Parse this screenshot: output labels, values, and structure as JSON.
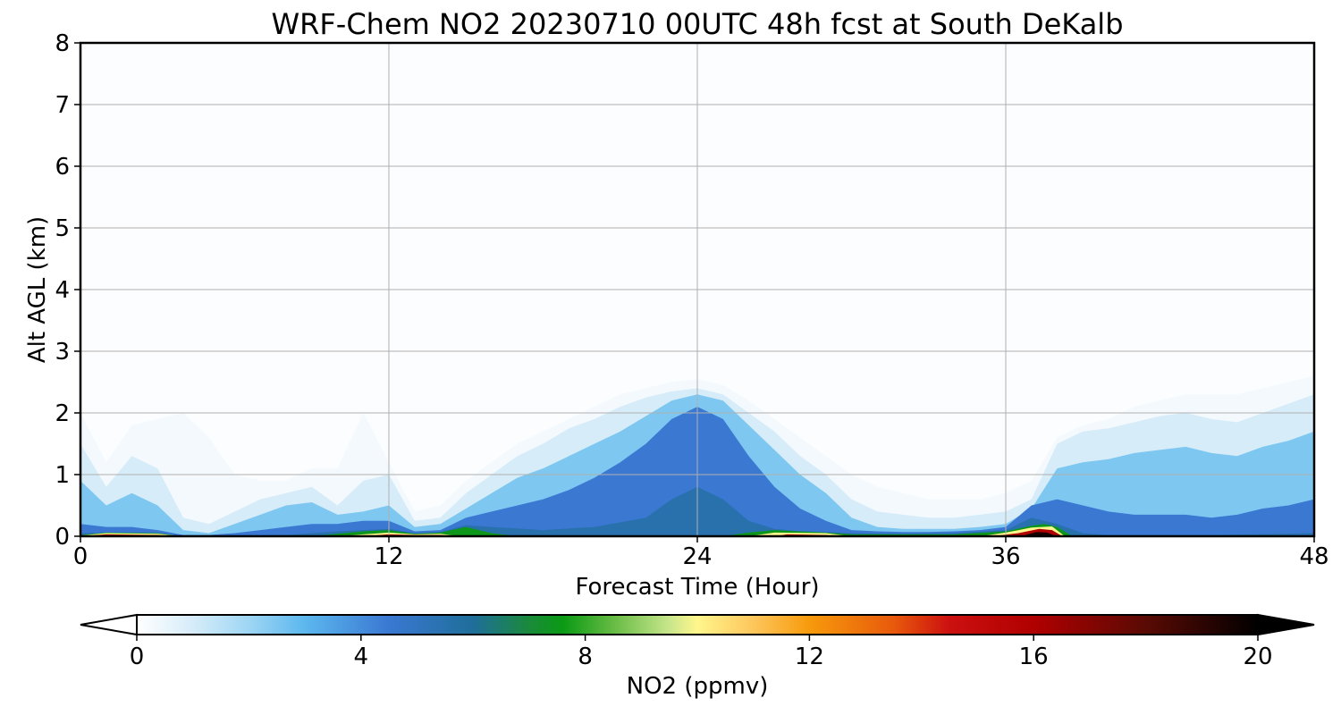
{
  "chart_data": {
    "type": "heatmap",
    "title": "WRF-Chem NO2  20230710 00UTC 48h fcst at South DeKalb",
    "xlabel": "Forecast Time (Hour)",
    "ylabel": "Alt AGL (km)",
    "xlim": [
      0,
      48
    ],
    "ylim": [
      0,
      8
    ],
    "xticks": [
      "0",
      "12",
      "24",
      "36",
      "48"
    ],
    "yticks": [
      "0",
      "1",
      "2",
      "3",
      "4",
      "5",
      "6",
      "7",
      "8"
    ],
    "grid": true,
    "colorbar": {
      "label": "NO2  (ppmv)",
      "range": [
        0,
        20
      ],
      "ticks": [
        "0",
        "4",
        "8",
        "12",
        "16",
        "20"
      ],
      "extend": "both",
      "stops": [
        {
          "v": 0,
          "c": "#ffffff"
        },
        {
          "v": 1,
          "c": "#d6ecf9"
        },
        {
          "v": 2,
          "c": "#9ed6f4"
        },
        {
          "v": 3,
          "c": "#5cb7ee"
        },
        {
          "v": 4.5,
          "c": "#3a78d2"
        },
        {
          "v": 6,
          "c": "#1f6e9a"
        },
        {
          "v": 7,
          "c": "#1a8a3a"
        },
        {
          "v": 7.6,
          "c": "#0a9a14"
        },
        {
          "v": 8.5,
          "c": "#66bb44"
        },
        {
          "v": 9.5,
          "c": "#c8e68c"
        },
        {
          "v": 10,
          "c": "#fff68c"
        },
        {
          "v": 11,
          "c": "#fdc65c"
        },
        {
          "v": 12,
          "c": "#f79a0c"
        },
        {
          "v": 13.5,
          "c": "#e85a0c"
        },
        {
          "v": 14.5,
          "c": "#cc1010"
        },
        {
          "v": 16,
          "c": "#b00000"
        },
        {
          "v": 18,
          "c": "#5a0a04"
        },
        {
          "v": 20,
          "c": "#000000"
        }
      ]
    },
    "background_value": 0.1,
    "bands": [
      {
        "name": "faint",
        "value": 0.3,
        "top": [
          [
            0,
            2.0
          ],
          [
            1,
            1.2
          ],
          [
            2,
            1.8
          ],
          [
            3,
            1.9
          ],
          [
            4,
            2.0
          ],
          [
            5,
            1.6
          ],
          [
            6,
            1.0
          ],
          [
            7,
            0.9
          ],
          [
            8,
            0.9
          ],
          [
            9,
            1.1
          ],
          [
            10,
            1.1
          ],
          [
            11,
            2.0
          ],
          [
            12,
            1.2
          ],
          [
            13,
            0.4
          ],
          [
            14,
            0.5
          ],
          [
            15,
            0.9
          ],
          [
            16,
            1.2
          ],
          [
            17,
            1.5
          ],
          [
            18,
            1.7
          ],
          [
            19,
            1.9
          ],
          [
            20,
            2.1
          ],
          [
            21,
            2.3
          ],
          [
            22,
            2.4
          ],
          [
            23,
            2.5
          ],
          [
            24,
            2.55
          ],
          [
            25,
            2.45
          ],
          [
            26,
            2.2
          ],
          [
            27,
            1.9
          ],
          [
            28,
            1.6
          ],
          [
            29,
            1.3
          ],
          [
            30,
            1.0
          ],
          [
            31,
            0.8
          ],
          [
            32,
            0.7
          ],
          [
            33,
            0.6
          ],
          [
            34,
            0.6
          ],
          [
            35,
            0.6
          ],
          [
            36,
            0.7
          ],
          [
            37,
            0.9
          ],
          [
            38,
            1.6
          ],
          [
            39,
            1.8
          ],
          [
            40,
            1.9
          ],
          [
            41,
            2.1
          ],
          [
            42,
            2.2
          ],
          [
            43,
            2.3
          ],
          [
            44,
            2.3
          ],
          [
            45,
            2.3
          ],
          [
            46,
            2.4
          ],
          [
            47,
            2.5
          ],
          [
            48,
            2.6
          ]
        ]
      },
      {
        "name": "light",
        "value": 1.0,
        "top": [
          [
            0,
            1.5
          ],
          [
            1,
            0.8
          ],
          [
            2,
            1.3
          ],
          [
            3,
            1.1
          ],
          [
            4,
            0.3
          ],
          [
            5,
            0.2
          ],
          [
            6,
            0.4
          ],
          [
            7,
            0.6
          ],
          [
            8,
            0.7
          ],
          [
            9,
            0.8
          ],
          [
            10,
            0.5
          ],
          [
            11,
            0.9
          ],
          [
            12,
            1.0
          ],
          [
            13,
            0.25
          ],
          [
            14,
            0.3
          ],
          [
            15,
            0.7
          ],
          [
            16,
            1.0
          ],
          [
            17,
            1.3
          ],
          [
            18,
            1.5
          ],
          [
            19,
            1.75
          ],
          [
            20,
            1.9
          ],
          [
            21,
            2.1
          ],
          [
            22,
            2.25
          ],
          [
            23,
            2.35
          ],
          [
            24,
            2.4
          ],
          [
            25,
            2.3
          ],
          [
            26,
            2.0
          ],
          [
            27,
            1.7
          ],
          [
            28,
            1.3
          ],
          [
            29,
            1.0
          ],
          [
            30,
            0.6
          ],
          [
            31,
            0.4
          ],
          [
            32,
            0.35
          ],
          [
            33,
            0.3
          ],
          [
            34,
            0.3
          ],
          [
            35,
            0.35
          ],
          [
            36,
            0.4
          ],
          [
            37,
            0.6
          ],
          [
            38,
            1.5
          ],
          [
            39,
            1.7
          ],
          [
            40,
            1.75
          ],
          [
            41,
            1.85
          ],
          [
            42,
            1.95
          ],
          [
            43,
            2.0
          ],
          [
            44,
            1.9
          ],
          [
            45,
            1.85
          ],
          [
            46,
            2.0
          ],
          [
            47,
            2.15
          ],
          [
            48,
            2.3
          ]
        ]
      },
      {
        "name": "medium",
        "value": 2.5,
        "top": [
          [
            0,
            0.9
          ],
          [
            1,
            0.5
          ],
          [
            2,
            0.7
          ],
          [
            3,
            0.5
          ],
          [
            4,
            0.1
          ],
          [
            5,
            0.05
          ],
          [
            6,
            0.2
          ],
          [
            7,
            0.35
          ],
          [
            8,
            0.5
          ],
          [
            9,
            0.55
          ],
          [
            10,
            0.35
          ],
          [
            11,
            0.4
          ],
          [
            12,
            0.5
          ],
          [
            13,
            0.15
          ],
          [
            14,
            0.2
          ],
          [
            15,
            0.45
          ],
          [
            16,
            0.7
          ],
          [
            17,
            0.95
          ],
          [
            18,
            1.1
          ],
          [
            19,
            1.3
          ],
          [
            20,
            1.5
          ],
          [
            21,
            1.7
          ],
          [
            22,
            1.95
          ],
          [
            23,
            2.2
          ],
          [
            24,
            2.3
          ],
          [
            25,
            2.2
          ],
          [
            26,
            1.8
          ],
          [
            27,
            1.4
          ],
          [
            28,
            1.0
          ],
          [
            29,
            0.7
          ],
          [
            30,
            0.3
          ],
          [
            31,
            0.15
          ],
          [
            32,
            0.12
          ],
          [
            33,
            0.12
          ],
          [
            34,
            0.12
          ],
          [
            35,
            0.15
          ],
          [
            36,
            0.2
          ],
          [
            37,
            0.45
          ],
          [
            38,
            1.1
          ],
          [
            39,
            1.2
          ],
          [
            40,
            1.25
          ],
          [
            41,
            1.35
          ],
          [
            42,
            1.4
          ],
          [
            43,
            1.45
          ],
          [
            44,
            1.35
          ],
          [
            45,
            1.3
          ],
          [
            46,
            1.45
          ],
          [
            47,
            1.55
          ],
          [
            48,
            1.7
          ]
        ]
      },
      {
        "name": "strong",
        "value": 4.5,
        "top": [
          [
            0,
            0.2
          ],
          [
            1,
            0.15
          ],
          [
            2,
            0.15
          ],
          [
            3,
            0.1
          ],
          [
            4,
            0.02
          ],
          [
            5,
            0.02
          ],
          [
            6,
            0.05
          ],
          [
            7,
            0.1
          ],
          [
            8,
            0.15
          ],
          [
            9,
            0.2
          ],
          [
            10,
            0.2
          ],
          [
            11,
            0.25
          ],
          [
            12,
            0.25
          ],
          [
            13,
            0.08
          ],
          [
            14,
            0.1
          ],
          [
            15,
            0.3
          ],
          [
            16,
            0.4
          ],
          [
            17,
            0.5
          ],
          [
            18,
            0.6
          ],
          [
            19,
            0.75
          ],
          [
            20,
            0.95
          ],
          [
            21,
            1.2
          ],
          [
            22,
            1.5
          ],
          [
            23,
            1.9
          ],
          [
            24,
            2.1
          ],
          [
            25,
            1.9
          ],
          [
            26,
            1.3
          ],
          [
            27,
            0.8
          ],
          [
            28,
            0.45
          ],
          [
            29,
            0.25
          ],
          [
            30,
            0.1
          ],
          [
            31,
            0.08
          ],
          [
            32,
            0.07
          ],
          [
            33,
            0.07
          ],
          [
            34,
            0.08
          ],
          [
            35,
            0.1
          ],
          [
            36,
            0.15
          ],
          [
            37,
            0.5
          ],
          [
            38,
            0.6
          ],
          [
            39,
            0.5
          ],
          [
            40,
            0.4
          ],
          [
            41,
            0.35
          ],
          [
            42,
            0.35
          ],
          [
            43,
            0.35
          ],
          [
            44,
            0.3
          ],
          [
            45,
            0.35
          ],
          [
            46,
            0.45
          ],
          [
            47,
            0.5
          ],
          [
            48,
            0.6
          ]
        ]
      },
      {
        "name": "deep",
        "value": 5.5,
        "top": [
          [
            0,
            0.05
          ],
          [
            2,
            0.04
          ],
          [
            4,
            0.0
          ],
          [
            8,
            0.02
          ],
          [
            10,
            0.08
          ],
          [
            12,
            0.12
          ],
          [
            13,
            0.05
          ],
          [
            14,
            0.07
          ],
          [
            15,
            0.18
          ],
          [
            16,
            0.15
          ],
          [
            18,
            0.1
          ],
          [
            20,
            0.15
          ],
          [
            22,
            0.3
          ],
          [
            23,
            0.6
          ],
          [
            24,
            0.8
          ],
          [
            25,
            0.6
          ],
          [
            26,
            0.25
          ],
          [
            27,
            0.12
          ],
          [
            28,
            0.08
          ],
          [
            30,
            0.05
          ],
          [
            32,
            0.04
          ],
          [
            34,
            0.05
          ],
          [
            36,
            0.1
          ],
          [
            37,
            0.3
          ],
          [
            38,
            0.2
          ],
          [
            39,
            0.05
          ],
          [
            40,
            0.02
          ],
          [
            44,
            0.02
          ],
          [
            48,
            0.05
          ]
        ]
      },
      {
        "name": "green",
        "value": 7.5,
        "top": [
          [
            0,
            0.02
          ],
          [
            1,
            0.06
          ],
          [
            3,
            0.05
          ],
          [
            4,
            0.0
          ],
          [
            9,
            0.0
          ],
          [
            10,
            0.04
          ],
          [
            11,
            0.08
          ],
          [
            12,
            0.1
          ],
          [
            13,
            0.04
          ],
          [
            14,
            0.06
          ],
          [
            15,
            0.15
          ],
          [
            16,
            0.05
          ],
          [
            17,
            0.0
          ],
          [
            25,
            0.0
          ],
          [
            26,
            0.06
          ],
          [
            27,
            0.1
          ],
          [
            29,
            0.06
          ],
          [
            30,
            0.03
          ],
          [
            34,
            0.03
          ],
          [
            36,
            0.08
          ],
          [
            37,
            0.17
          ],
          [
            37.5,
            0.2
          ],
          [
            38,
            0.15
          ],
          [
            38.6,
            0.0
          ],
          [
            48,
            0.0
          ]
        ]
      },
      {
        "name": "yellow",
        "value": 10,
        "top": [
          [
            0,
            0.01
          ],
          [
            1,
            0.05
          ],
          [
            3,
            0.04
          ],
          [
            4,
            0.0
          ],
          [
            10,
            0.0
          ],
          [
            11,
            0.03
          ],
          [
            12,
            0.06
          ],
          [
            13,
            0.03
          ],
          [
            14,
            0.04
          ],
          [
            14.8,
            0.0
          ],
          [
            26,
            0.0
          ],
          [
            27,
            0.06
          ],
          [
            29,
            0.05
          ],
          [
            30,
            0.0
          ],
          [
            35,
            0.0
          ],
          [
            36,
            0.06
          ],
          [
            37,
            0.14
          ],
          [
            37.8,
            0.16
          ],
          [
            38.3,
            0.0
          ],
          [
            48,
            0.0
          ]
        ]
      },
      {
        "name": "red",
        "value": 16,
        "top": [
          [
            0,
            0.0
          ],
          [
            1,
            0.03
          ],
          [
            3,
            0.02
          ],
          [
            3.5,
            0.0
          ],
          [
            11,
            0.0
          ],
          [
            12,
            0.03
          ],
          [
            13,
            0.02
          ],
          [
            14,
            0.02
          ],
          [
            14.5,
            0.0
          ],
          [
            27,
            0.0
          ],
          [
            27.5,
            0.03
          ],
          [
            29,
            0.02
          ],
          [
            29.5,
            0.0
          ],
          [
            35.5,
            0.0
          ],
          [
            36.5,
            0.05
          ],
          [
            37.3,
            0.12
          ],
          [
            37.8,
            0.1
          ],
          [
            38.2,
            0.0
          ],
          [
            48,
            0.0
          ]
        ]
      },
      {
        "name": "black",
        "value": 19.5,
        "top": [
          [
            36.6,
            0.0
          ],
          [
            37.2,
            0.07
          ],
          [
            37.6,
            0.06
          ],
          [
            38,
            0.0
          ]
        ]
      }
    ]
  }
}
